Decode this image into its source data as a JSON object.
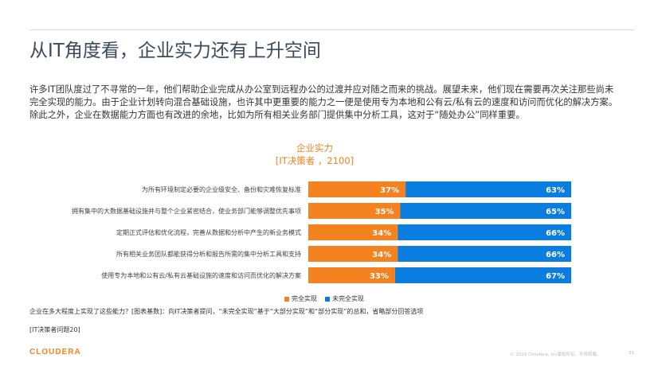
{
  "page": {
    "title": "从IT角度看，企业实力还有上升空间",
    "intro": "许多IT团队度过了不寻常的一年，他们帮助企业完成从办公室到远程办公的过渡并应对随之而来的挑战。展望未来，他们现在需要再次关注那些尚未完全实现的能力。由于企业计划转向混合基础设施，也许其中更重要的能力之一便是使用专为本地和公有云/私有云的速度和访问而优化的解决方案。除此之外，企业在数据能力方面也有改进的余地，比如为所有相关业务部门提供集中分析工具，这对于“随处办公”同样重要。",
    "footnote": "企业在多大程度上实现了这些能力？[图表基数]：向IT决策者提问，“未完全实现”基于“大部分实现”和“部分实现”的总和，省略部分回答选项",
    "footnote2": "[IT决策者问题20]",
    "logo": "CLOUDERA",
    "footer_text": "© 2019 Cloudera, Inc版权所有。不得转载。",
    "page_number": "35"
  },
  "chart_data": {
    "type": "bar",
    "orientation": "horizontal",
    "stacked": true,
    "title": "企业实力",
    "subtitle": "[IT决策者 ，2100]",
    "categories": [
      "为所有环境制定必要的企业级安全、备份和灾难恢复标准",
      "拥有集中的大数据基础设施并与整个企业紧密结合，使业务部门能够调整优先事项",
      "定期正式评估和优化流程，完善从数据和分析中产生的新业务模式",
      "所有相关业务团队都能获得分析和报告所需的集中分析工具和支持",
      "使用专为本地和公有云/私有云基础设施的速度和访问而优化的解决方案"
    ],
    "series": [
      {
        "name": "完全实现",
        "values": [
          37,
          35,
          34,
          34,
          33
        ],
        "color": "#f58220"
      },
      {
        "name": "未完全实现",
        "values": [
          63,
          65,
          66,
          66,
          67
        ],
        "color": "#0a7ee0"
      }
    ],
    "value_suffix": "%",
    "xlim": [
      0,
      100
    ],
    "grid": false,
    "legend_position": "bottom"
  }
}
